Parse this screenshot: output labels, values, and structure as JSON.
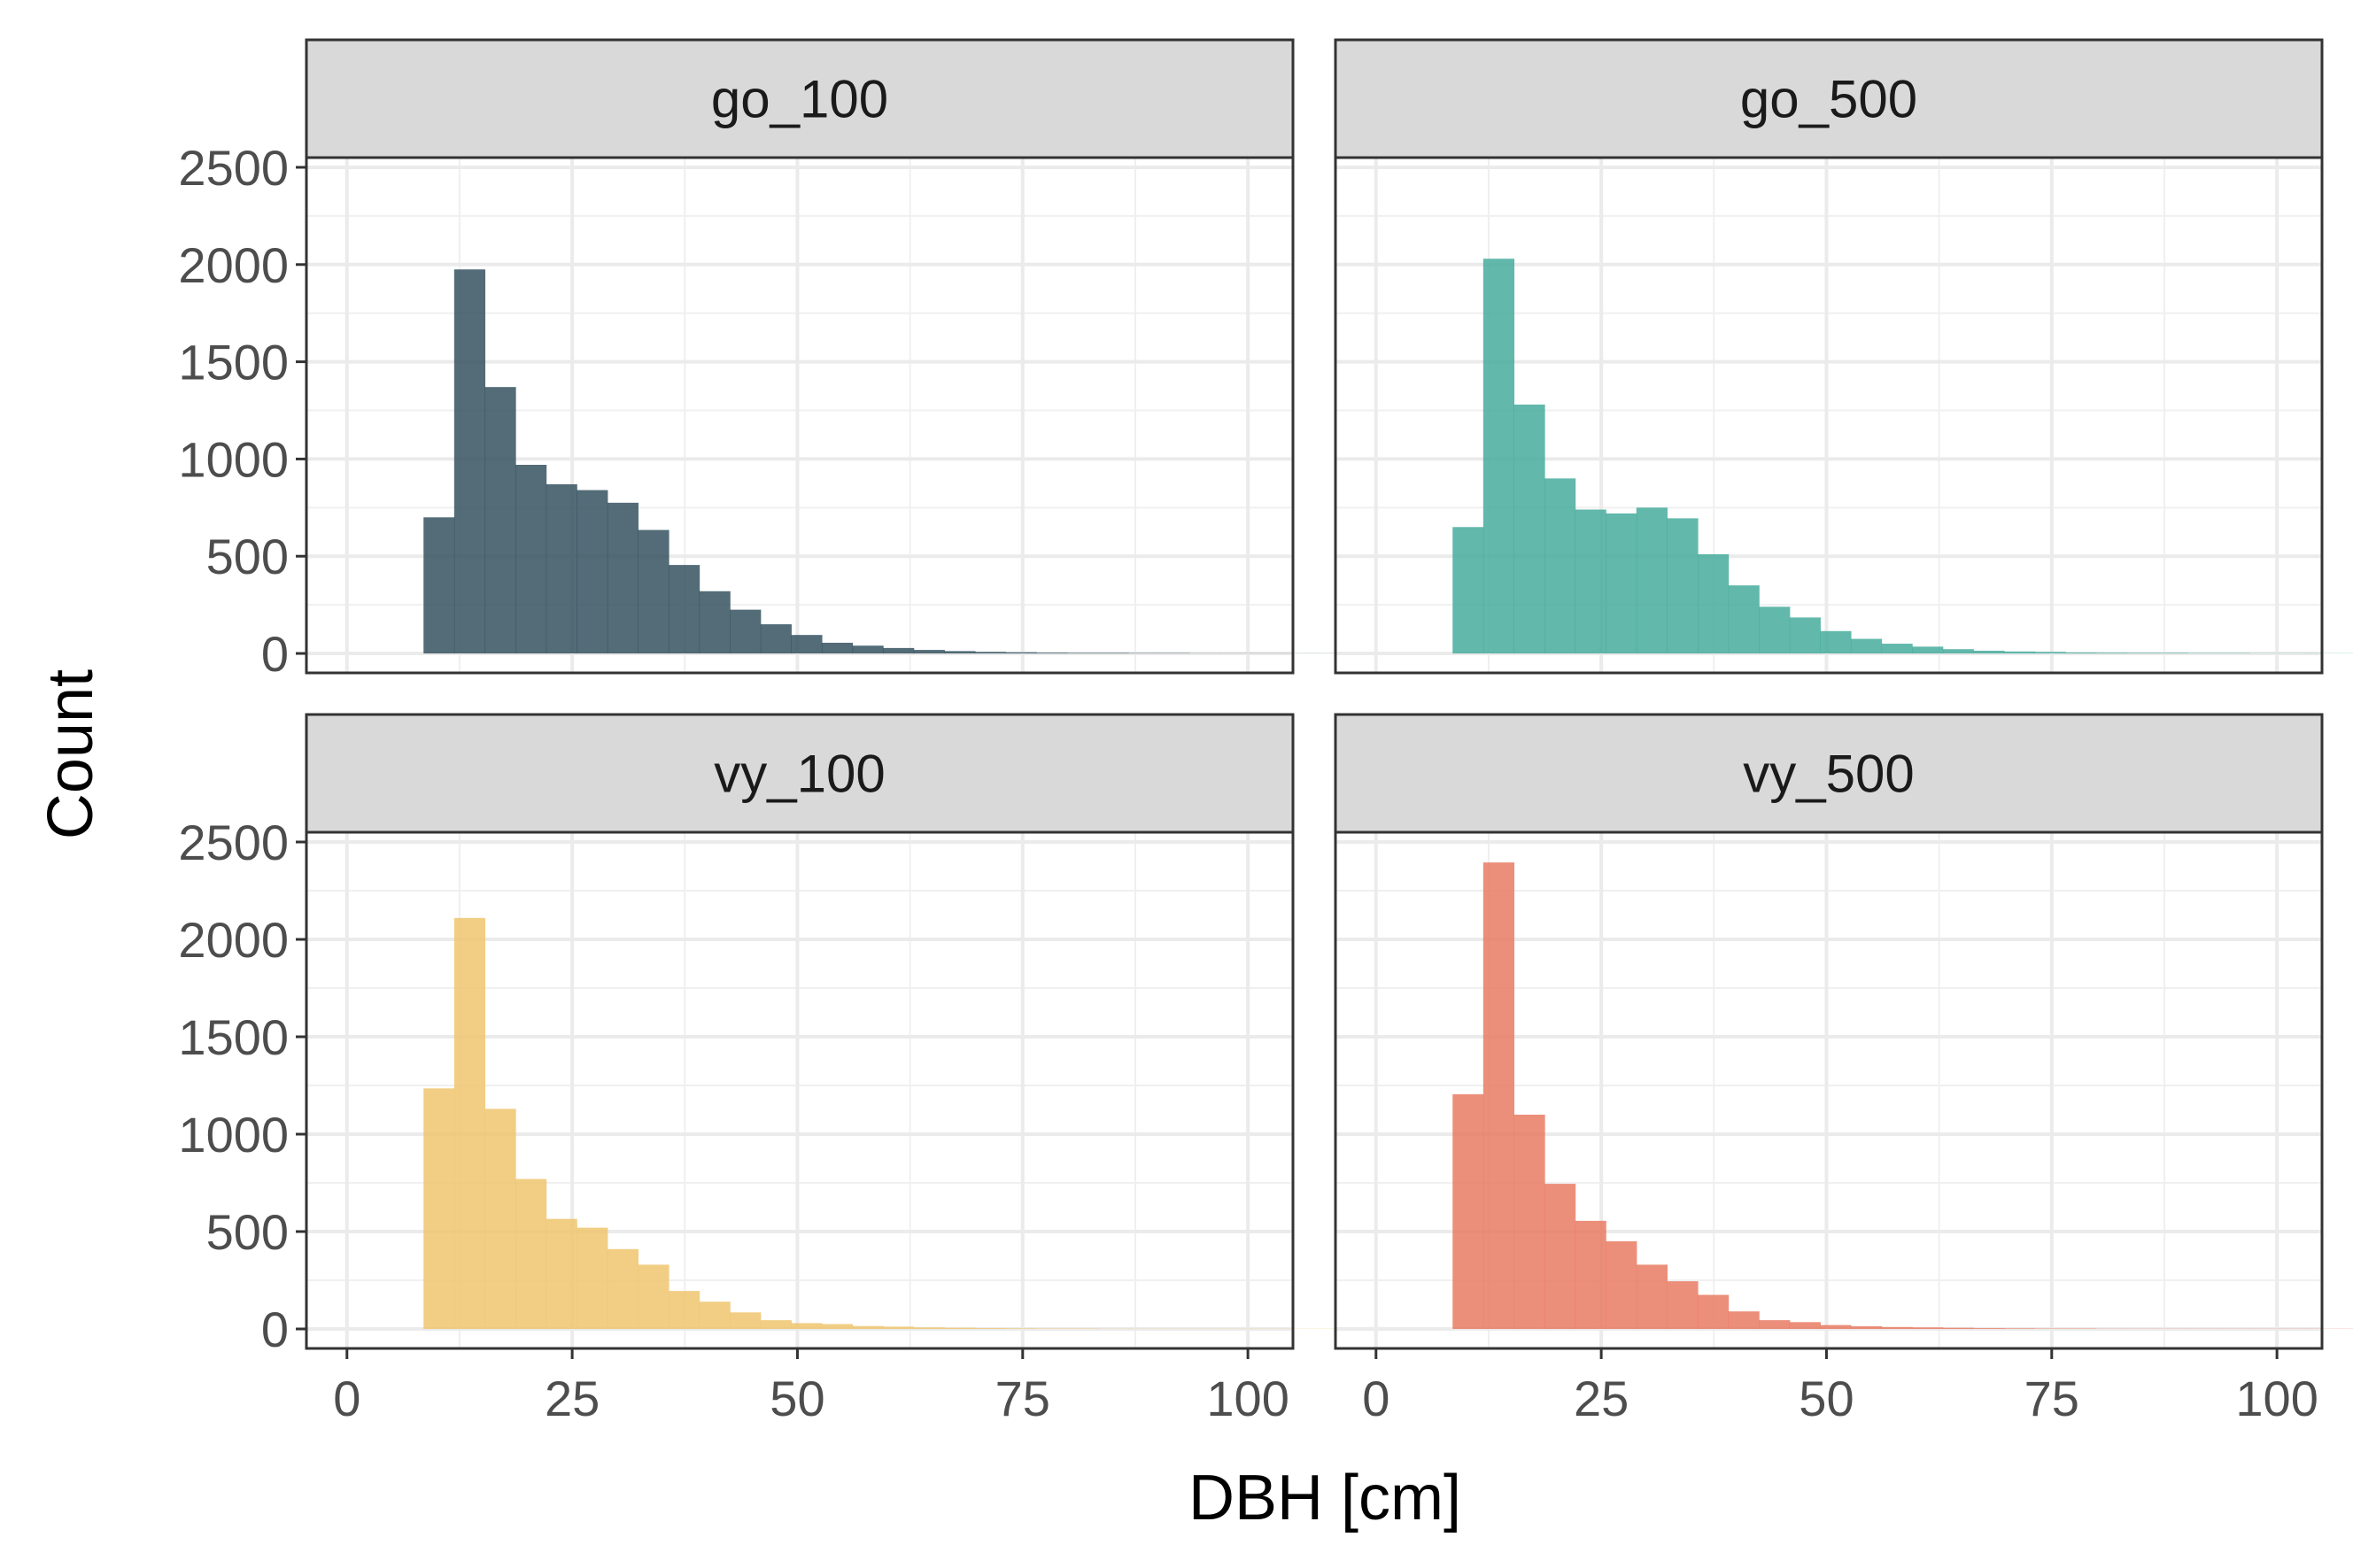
{
  "chart_data": {
    "type": "bar",
    "xlabel": "DBH [cm]",
    "ylabel": "Count",
    "xlim": [
      -4.5,
      105
    ],
    "ylim": [
      -100,
      2550
    ],
    "x_ticks": [
      0,
      25,
      50,
      75,
      100
    ],
    "y_ticks": [
      0,
      500,
      1000,
      1500,
      2000,
      2500
    ],
    "x_minor_ticks": [
      12.5,
      37.5,
      62.5,
      87.5
    ],
    "y_minor_ticks": [
      250,
      750,
      1250,
      1750,
      2250
    ],
    "grid": true,
    "bin_width": 3.4,
    "bin_start": 8.5,
    "panels": [
      {
        "name": "go_100",
        "color": "#35525f",
        "values": [
          700,
          1975,
          1370,
          970,
          870,
          840,
          775,
          635,
          455,
          320,
          225,
          150,
          95,
          55,
          40,
          28,
          18,
          12,
          8,
          6,
          4,
          3,
          3,
          2,
          2,
          1,
          1,
          1,
          1,
          1,
          1
        ]
      },
      {
        "name": "go_500",
        "color": "#47ac9c",
        "values": [
          650,
          2030,
          1280,
          900,
          740,
          720,
          750,
          695,
          510,
          350,
          240,
          185,
          115,
          75,
          50,
          35,
          22,
          14,
          10,
          8,
          5,
          4,
          3,
          3,
          2,
          2,
          1,
          1,
          1,
          1,
          1
        ]
      },
      {
        "name": "vy_100",
        "color": "#efc56f",
        "values": [
          1235,
          2110,
          1130,
          770,
          565,
          520,
          410,
          330,
          195,
          140,
          85,
          45,
          30,
          25,
          15,
          12,
          8,
          6,
          4,
          3,
          2,
          2,
          1,
          1,
          1,
          1,
          1,
          1,
          1,
          1,
          1
        ]
      },
      {
        "name": "vy_500",
        "color": "#e97b63",
        "values": [
          1205,
          2395,
          1100,
          745,
          555,
          450,
          330,
          245,
          175,
          90,
          45,
          35,
          20,
          14,
          10,
          8,
          6,
          4,
          3,
          2,
          2,
          1,
          1,
          1,
          1,
          1,
          1,
          1,
          1,
          1,
          1
        ]
      }
    ]
  }
}
